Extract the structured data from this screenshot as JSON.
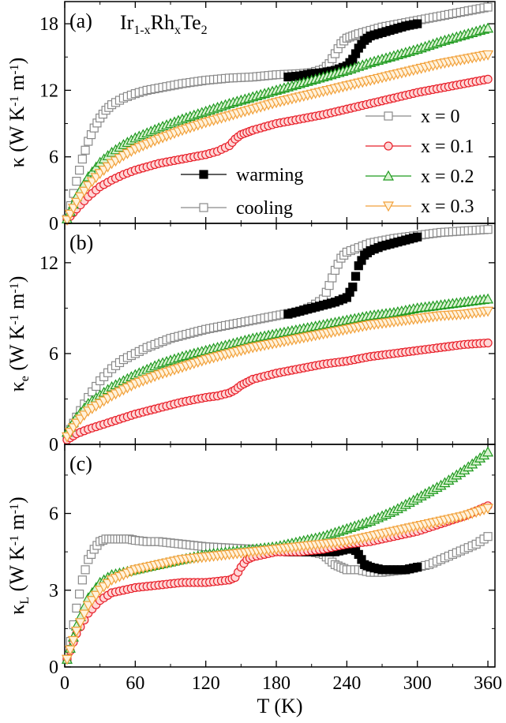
{
  "chart_data": [
    {
      "type": "scatter",
      "panel_label": "(a)",
      "annotation_parts": [
        "Ir",
        "1-x",
        "Rh",
        "x",
        "Te",
        "2"
      ],
      "ylabel_parts": [
        "κ (W K",
        "-1",
        " m",
        "-1",
        ")"
      ],
      "xlim": [
        0,
        366
      ],
      "ylim": [
        0,
        20
      ],
      "yticks": [
        0,
        6,
        12,
        18
      ],
      "yticklabels": [
        "0",
        "6",
        "12",
        "18"
      ],
      "legend_composition": [
        "x = 0",
        "x = 0.1",
        "x = 0.2",
        "x = 0.3"
      ],
      "legend_direction": [
        "warming",
        "cooling"
      ],
      "series": [
        {
          "name": "x = 0",
          "color": "#8a8a8a",
          "marker": "square",
          "x": [
            2,
            5,
            10,
            15,
            20,
            25,
            30,
            35,
            40,
            50,
            60,
            70,
            80,
            90,
            100,
            120,
            140,
            160,
            180,
            200,
            210,
            220,
            225,
            230,
            235,
            240,
            245,
            250,
            260,
            270,
            280,
            290,
            300,
            310,
            320,
            330,
            340,
            350,
            360
          ],
          "y": [
            0.4,
            1.6,
            3.8,
            5.8,
            7.4,
            8.6,
            9.5,
            10.2,
            10.7,
            11.3,
            11.7,
            12.0,
            12.2,
            12.4,
            12.6,
            12.9,
            13.1,
            13.2,
            13.4,
            13.5,
            13.6,
            13.9,
            14.4,
            15.3,
            16.2,
            16.7,
            16.9,
            17.1,
            17.4,
            17.7,
            17.9,
            18.1,
            18.3,
            18.5,
            18.7,
            18.9,
            19.1,
            19.3,
            19.5
          ]
        },
        {
          "name": "x = 0 warming",
          "color": "#000000",
          "marker": "square-filled",
          "x": [
            190,
            200,
            210,
            220,
            230,
            240,
            245,
            250,
            255,
            260,
            270,
            280,
            290,
            300
          ],
          "y": [
            13.2,
            13.3,
            13.5,
            13.6,
            13.8,
            14.2,
            14.8,
            15.8,
            16.5,
            16.9,
            17.2,
            17.5,
            17.8,
            18.0
          ]
        },
        {
          "name": "x = 0.1",
          "color": "#e8202a",
          "marker": "circle",
          "x": [
            2,
            10,
            20,
            30,
            40,
            50,
            60,
            70,
            80,
            90,
            100,
            110,
            120,
            130,
            140,
            145,
            150,
            155,
            160,
            170,
            180,
            200,
            220,
            240,
            260,
            280,
            300,
            320,
            340,
            360
          ],
          "y": [
            0.3,
            1.3,
            2.4,
            3.3,
            3.9,
            4.4,
            4.8,
            5.1,
            5.4,
            5.6,
            5.8,
            6.0,
            6.2,
            6.5,
            7.0,
            7.6,
            8.0,
            8.2,
            8.4,
            8.7,
            9.0,
            9.4,
            9.8,
            10.3,
            10.8,
            11.3,
            11.8,
            12.2,
            12.6,
            13.0
          ]
        },
        {
          "name": "x = 0.2",
          "color": "#1f9a1f",
          "marker": "triangle-up",
          "x": [
            2,
            10,
            20,
            30,
            40,
            50,
            60,
            80,
            100,
            120,
            140,
            160,
            180,
            200,
            220,
            240,
            260,
            280,
            300,
            320,
            340,
            360
          ],
          "y": [
            0.4,
            2.4,
            4.2,
            5.5,
            6.4,
            7.1,
            7.7,
            8.6,
            9.4,
            10.1,
            10.8,
            11.4,
            12.0,
            12.6,
            13.2,
            13.8,
            14.5,
            15.1,
            15.7,
            16.4,
            17.0,
            17.6
          ]
        },
        {
          "name": "x = 0.3",
          "color": "#f2a13a",
          "marker": "triangle-down",
          "x": [
            2,
            10,
            20,
            30,
            40,
            50,
            60,
            80,
            100,
            120,
            140,
            160,
            180,
            200,
            220,
            240,
            260,
            280,
            300,
            320,
            340,
            360
          ],
          "y": [
            0.3,
            1.9,
            3.4,
            4.5,
            5.4,
            6.1,
            6.7,
            7.6,
            8.4,
            9.1,
            9.7,
            10.3,
            10.9,
            11.4,
            11.9,
            12.4,
            12.9,
            13.4,
            13.9,
            14.4,
            14.8,
            15.2
          ]
        }
      ]
    },
    {
      "type": "scatter",
      "panel_label": "(b)",
      "ylabel_parts": [
        "κ",
        "e",
        " (W K",
        "-1",
        " m",
        "-1",
        ")"
      ],
      "xlim": [
        0,
        366
      ],
      "ylim": [
        0,
        14.6
      ],
      "yticks": [
        0,
        6,
        12
      ],
      "yticklabels": [
        "0",
        "6",
        "12"
      ],
      "series": [
        {
          "name": "x = 0",
          "color": "#8a8a8a",
          "marker": "square",
          "x": [
            2,
            5,
            10,
            20,
            30,
            40,
            50,
            60,
            70,
            80,
            90,
            100,
            120,
            140,
            160,
            180,
            200,
            210,
            220,
            225,
            230,
            235,
            240,
            250,
            260,
            280,
            300,
            320,
            340,
            360
          ],
          "y": [
            0.5,
            1.0,
            1.8,
            3.1,
            4.2,
            5.0,
            5.6,
            6.0,
            6.4,
            6.7,
            7.0,
            7.2,
            7.6,
            7.9,
            8.2,
            8.5,
            8.8,
            9.1,
            9.6,
            10.5,
            11.5,
            12.3,
            12.7,
            13.0,
            13.3,
            13.6,
            13.8,
            14.0,
            14.1,
            14.2
          ]
        },
        {
          "name": "x = 0 warming",
          "color": "#000000",
          "marker": "square-filled",
          "x": [
            190,
            200,
            210,
            220,
            230,
            240,
            245,
            250,
            255,
            260,
            270,
            280,
            290,
            300
          ],
          "y": [
            8.6,
            8.8,
            9.0,
            9.2,
            9.4,
            9.7,
            10.4,
            11.8,
            12.5,
            12.8,
            13.1,
            13.3,
            13.5,
            13.7
          ]
        },
        {
          "name": "x = 0.1",
          "color": "#e8202a",
          "marker": "circle",
          "x": [
            2,
            10,
            20,
            40,
            60,
            80,
            100,
            120,
            130,
            140,
            145,
            150,
            155,
            160,
            170,
            180,
            200,
            220,
            240,
            260,
            280,
            300,
            320,
            340,
            360
          ],
          "y": [
            0.3,
            0.7,
            1.0,
            1.5,
            2.0,
            2.4,
            2.8,
            3.1,
            3.2,
            3.4,
            3.6,
            3.9,
            4.1,
            4.3,
            4.5,
            4.7,
            5.0,
            5.3,
            5.5,
            5.8,
            6.0,
            6.2,
            6.4,
            6.6,
            6.7
          ]
        },
        {
          "name": "x = 0.2",
          "color": "#1f9a1f",
          "marker": "triangle-up",
          "x": [
            2,
            10,
            20,
            40,
            60,
            80,
            100,
            120,
            140,
            160,
            180,
            200,
            220,
            240,
            260,
            280,
            300,
            320,
            340,
            360
          ],
          "y": [
            0.8,
            1.8,
            2.7,
            3.8,
            4.6,
            5.3,
            5.8,
            6.2,
            6.6,
            7.0,
            7.3,
            7.6,
            7.9,
            8.2,
            8.5,
            8.7,
            9.0,
            9.2,
            9.4,
            9.6
          ]
        },
        {
          "name": "x = 0.3",
          "color": "#f2a13a",
          "marker": "triangle-down",
          "x": [
            2,
            10,
            20,
            40,
            60,
            80,
            100,
            120,
            140,
            160,
            180,
            200,
            220,
            240,
            260,
            280,
            300,
            320,
            340,
            360
          ],
          "y": [
            0.5,
            1.4,
            2.2,
            3.2,
            4.0,
            4.6,
            5.1,
            5.6,
            6.0,
            6.4,
            6.7,
            7.0,
            7.3,
            7.6,
            7.9,
            8.1,
            8.3,
            8.5,
            8.6,
            8.8
          ]
        }
      ]
    },
    {
      "type": "scatter",
      "panel_label": "(c)",
      "ylabel_parts": [
        "κ",
        "L",
        " (W K",
        "-1",
        " m",
        "-1",
        ")"
      ],
      "xlim": [
        0,
        366
      ],
      "ylim": [
        0,
        8.7
      ],
      "yticks": [
        0,
        3,
        6
      ],
      "yticklabels": [
        "0",
        "3",
        "6"
      ],
      "xticks": [
        0,
        60,
        120,
        180,
        240,
        300,
        360
      ],
      "xticklabels": [
        "0",
        "60",
        "120",
        "180",
        "240",
        "300",
        "360"
      ],
      "xlabel": "T (K)",
      "series": [
        {
          "name": "x = 0",
          "color": "#8a8a8a",
          "marker": "square",
          "x": [
            2,
            5,
            10,
            15,
            20,
            25,
            30,
            35,
            40,
            45,
            50,
            55,
            60,
            70,
            80,
            90,
            100,
            120,
            140,
            160,
            180,
            200,
            210,
            220,
            225,
            230,
            235,
            240,
            250,
            260,
            270,
            280,
            290,
            300,
            310,
            320,
            330,
            340,
            350,
            360
          ],
          "y": [
            0.3,
            1.0,
            2.3,
            3.4,
            4.2,
            4.6,
            4.9,
            5.0,
            5.0,
            5.0,
            5.0,
            5.0,
            4.95,
            4.9,
            4.9,
            4.85,
            4.8,
            4.7,
            4.65,
            4.6,
            4.55,
            4.5,
            4.5,
            4.4,
            4.2,
            4.0,
            3.9,
            3.8,
            3.8,
            3.7,
            3.7,
            3.75,
            3.8,
            3.9,
            4.0,
            4.2,
            4.4,
            4.6,
            4.8,
            5.1
          ]
        },
        {
          "name": "x = 0 warming",
          "color": "#000000",
          "marker": "square-filled",
          "x": [
            190,
            200,
            210,
            220,
            230,
            240,
            245,
            250,
            255,
            260,
            270,
            280,
            290,
            300
          ],
          "y": [
            4.5,
            4.5,
            4.5,
            4.5,
            4.5,
            4.6,
            4.7,
            4.4,
            4.0,
            3.9,
            3.8,
            3.8,
            3.8,
            3.9
          ]
        },
        {
          "name": "x = 0.1",
          "color": "#e8202a",
          "marker": "circle",
          "x": [
            2,
            10,
            20,
            30,
            40,
            50,
            60,
            80,
            100,
            120,
            140,
            145,
            150,
            155,
            160,
            170,
            180,
            200,
            220,
            240,
            260,
            280,
            300,
            320,
            340,
            360
          ],
          "y": [
            0.3,
            1.3,
            2.1,
            2.6,
            2.9,
            3.0,
            3.1,
            3.2,
            3.3,
            3.3,
            3.4,
            3.5,
            3.9,
            4.2,
            4.3,
            4.4,
            4.5,
            4.5,
            4.6,
            4.8,
            4.9,
            5.1,
            5.3,
            5.6,
            5.9,
            6.3
          ]
        },
        {
          "name": "x = 0.2",
          "color": "#1f9a1f",
          "marker": "triangle-up",
          "x": [
            2,
            10,
            20,
            30,
            40,
            60,
            80,
            100,
            120,
            140,
            160,
            180,
            200,
            220,
            240,
            260,
            280,
            300,
            320,
            340,
            360
          ],
          "y": [
            0.3,
            1.6,
            2.7,
            3.3,
            3.6,
            3.8,
            4.0,
            4.2,
            4.4,
            4.5,
            4.6,
            4.7,
            4.9,
            5.1,
            5.4,
            5.7,
            6.1,
            6.6,
            7.1,
            7.7,
            8.4
          ]
        },
        {
          "name": "x = 0.3",
          "color": "#f2a13a",
          "marker": "triangle-down",
          "x": [
            2,
            10,
            20,
            30,
            40,
            60,
            80,
            100,
            120,
            140,
            160,
            180,
            200,
            220,
            240,
            260,
            280,
            300,
            320,
            340,
            360
          ],
          "y": [
            0.3,
            1.4,
            2.4,
            3.0,
            3.4,
            3.8,
            4.0,
            4.2,
            4.3,
            4.4,
            4.5,
            4.6,
            4.7,
            4.8,
            4.9,
            5.1,
            5.3,
            5.5,
            5.7,
            5.9,
            6.2
          ]
        }
      ]
    }
  ]
}
